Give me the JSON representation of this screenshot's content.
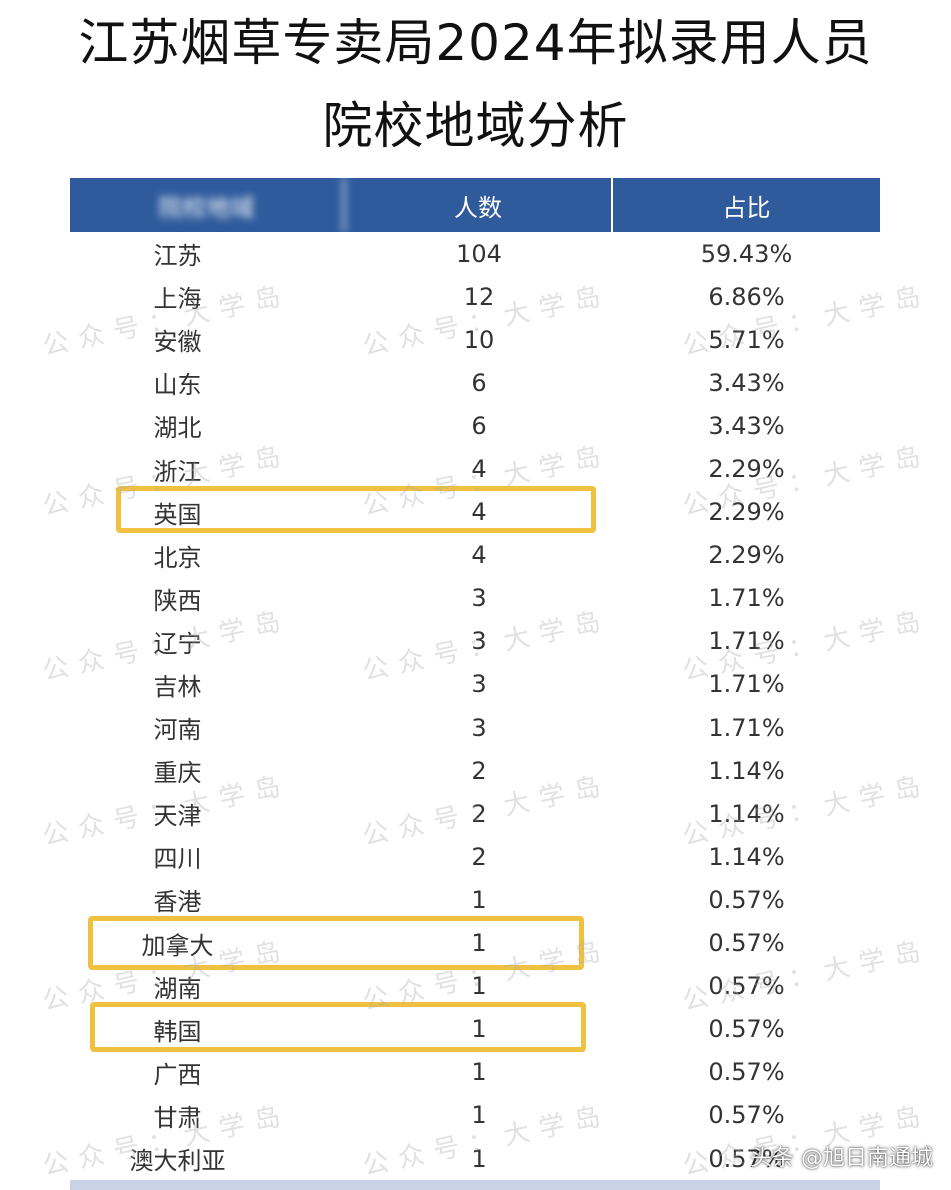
{
  "title": {
    "line1": "江苏烟草专卖局2024年拟录用人员",
    "line2": "院校地域分析"
  },
  "table": {
    "headers": [
      "院校地域",
      "人数",
      "占比"
    ],
    "rows": [
      {
        "region": "江苏",
        "count": "104",
        "pct": "59.43%"
      },
      {
        "region": "上海",
        "count": "12",
        "pct": "6.86%"
      },
      {
        "region": "安徽",
        "count": "10",
        "pct": "5.71%"
      },
      {
        "region": "山东",
        "count": "6",
        "pct": "3.43%"
      },
      {
        "region": "湖北",
        "count": "6",
        "pct": "3.43%"
      },
      {
        "region": "浙江",
        "count": "4",
        "pct": "2.29%"
      },
      {
        "region": "英国",
        "count": "4",
        "pct": "2.29%"
      },
      {
        "region": "北京",
        "count": "4",
        "pct": "2.29%"
      },
      {
        "region": "陕西",
        "count": "3",
        "pct": "1.71%"
      },
      {
        "region": "辽宁",
        "count": "3",
        "pct": "1.71%"
      },
      {
        "region": "吉林",
        "count": "3",
        "pct": "1.71%"
      },
      {
        "region": "河南",
        "count": "3",
        "pct": "1.71%"
      },
      {
        "region": "重庆",
        "count": "2",
        "pct": "1.14%"
      },
      {
        "region": "天津",
        "count": "2",
        "pct": "1.14%"
      },
      {
        "region": "四川",
        "count": "2",
        "pct": "1.14%"
      },
      {
        "region": "香港",
        "count": "1",
        "pct": "0.57%"
      },
      {
        "region": "加拿大",
        "count": "1",
        "pct": "0.57%"
      },
      {
        "region": "湖南",
        "count": "1",
        "pct": "0.57%"
      },
      {
        "region": "韩国",
        "count": "1",
        "pct": "0.57%"
      },
      {
        "region": "广西",
        "count": "1",
        "pct": "0.57%"
      },
      {
        "region": "甘肃",
        "count": "1",
        "pct": "0.57%"
      },
      {
        "region": "澳大利亚",
        "count": "1",
        "pct": "0.57%"
      }
    ]
  },
  "highlighted_rows": [
    "英国",
    "加拿大",
    "韩国"
  ],
  "highlight_color": "#f0c040",
  "header_color": "#2f5b9c",
  "watermark": "公众号：大学岛",
  "source_tag": "头条 @旭日南通城"
}
